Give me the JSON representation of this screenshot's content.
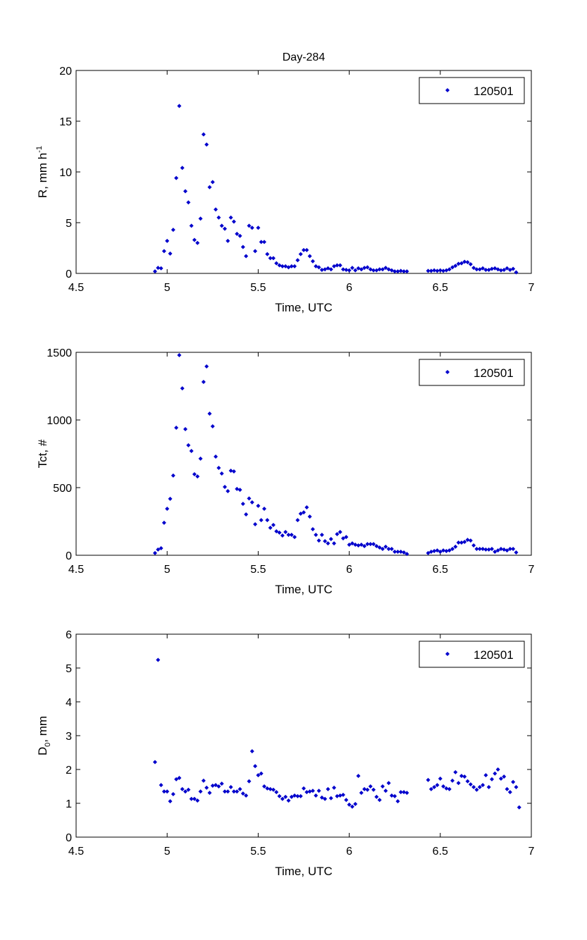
{
  "figure_title": "Day-284",
  "chart_data": [
    {
      "type": "scatter",
      "title": "Day-284",
      "xlabel": "Time, UTC",
      "ylabel": "R, mm h",
      "ylabel_sup": "-1",
      "xlim": [
        4.5,
        7
      ],
      "ylim": [
        0,
        20
      ],
      "xticks": [
        "4.5",
        "5",
        "5.5",
        "6",
        "6.5",
        "7"
      ],
      "yticks": [
        "0",
        "5",
        "10",
        "15",
        "20"
      ],
      "legend": {
        "entries": [
          "120501"
        ],
        "position": "top-right"
      },
      "marker_color": "#0000cc",
      "series": [
        {
          "name": "120501",
          "segments": [
            {
              "t_start": 4.9333,
              "t_step": 0.016667,
              "values": [
                0.2,
                0.55,
                0.5,
                2.2,
                3.2,
                1.95,
                4.3,
                9.4,
                16.5,
                10.4,
                8.1,
                7.0,
                4.7,
                3.3,
                3.0,
                5.4,
                13.7,
                12.7,
                8.5,
                9.0,
                6.3,
                5.5,
                4.7,
                4.4,
                3.2,
                5.5,
                5.1,
                3.9,
                3.7,
                2.6,
                1.7,
                4.7,
                4.5,
                2.2,
                4.5,
                3.1,
                3.1,
                1.9,
                1.5,
                1.5,
                1.0,
                0.8,
                0.7,
                0.7,
                0.6,
                0.7,
                0.7,
                1.3,
                1.9,
                2.3,
                2.3,
                1.7,
                1.2,
                0.7,
                0.6,
                0.35,
                0.4,
                0.5,
                0.4,
                0.7,
                0.8,
                0.8,
                0.4,
                0.35,
                0.3,
                0.55,
                0.3,
                0.5,
                0.4,
                0.55,
                0.6,
                0.4,
                0.3,
                0.3,
                0.4,
                0.4,
                0.55,
                0.4,
                0.3,
                0.2,
                0.2,
                0.25,
                0.2,
                0.2
              ]
            },
            {
              "t_start": 6.4333,
              "t_step": 0.016667,
              "values": [
                0.25,
                0.25,
                0.3,
                0.25,
                0.3,
                0.25,
                0.3,
                0.4,
                0.6,
                0.75,
                0.95,
                1.0,
                1.15,
                1.1,
                0.9,
                0.55,
                0.4,
                0.4,
                0.5,
                0.35,
                0.35,
                0.45,
                0.5,
                0.4,
                0.3,
                0.35,
                0.5,
                0.35,
                0.45,
                0.1
              ]
            }
          ]
        }
      ]
    },
    {
      "type": "scatter",
      "title": "",
      "xlabel": "Time, UTC",
      "ylabel": "Tct, #",
      "xlim": [
        4.5,
        7
      ],
      "ylim": [
        0,
        1500
      ],
      "xticks": [
        "4.5",
        "5",
        "5.5",
        "6",
        "6.5",
        "7"
      ],
      "yticks": [
        "0",
        "500",
        "1000",
        "1500"
      ],
      "legend": {
        "entries": [
          "120501"
        ],
        "position": "top-right"
      },
      "marker_color": "#0000cc",
      "series": [
        {
          "name": "120501",
          "segments": [
            {
              "t_start": 4.9333,
              "t_step": 0.016667,
              "values": [
                16,
                42,
                52,
                240,
                344,
                417,
                589,
                943,
                1479,
                1234,
                932,
                813,
                771,
                599,
                583,
                714,
                1281,
                1396,
                1047,
                953,
                729,
                646,
                604,
                505,
                474,
                625,
                620,
                490,
                484,
                380,
                302,
                420,
                391,
                229,
                365,
                260,
                344,
                260,
                203,
                224,
                177,
                167,
                146,
                172,
                151,
                151,
                135,
                260,
                307,
                317,
                354,
                286,
                193,
                151,
                109,
                151,
                104,
                88,
                120,
                88,
                156,
                172,
                125,
                135,
                78,
                88,
                78,
                73,
                78,
                68,
                83,
                83,
                83,
                68,
                57,
                47,
                63,
                47,
                47,
                26,
                26,
                26,
                21,
                10
              ]
            },
            {
              "t_start": 6.4333,
              "t_step": 0.016667,
              "values": [
                16,
                26,
                31,
                36,
                26,
                36,
                31,
                36,
                47,
                63,
                94,
                94,
                99,
                114,
                109,
                73,
                47,
                47,
                47,
                42,
                42,
                47,
                26,
                36,
                47,
                42,
                36,
                47,
                47,
                21
              ]
            }
          ]
        }
      ]
    },
    {
      "type": "scatter",
      "title": "",
      "xlabel": "Time, UTC",
      "ylabel": "D",
      "ylabel_sub": "0",
      "ylabel_suffix": ", mm",
      "xlim": [
        4.5,
        7
      ],
      "ylim": [
        0,
        6
      ],
      "xticks": [
        "4.5",
        "5",
        "5.5",
        "6",
        "6.5",
        "7"
      ],
      "yticks": [
        "0",
        "1",
        "2",
        "3",
        "4",
        "5",
        "6"
      ],
      "legend": {
        "entries": [
          "120501"
        ],
        "position": "top-right"
      },
      "marker_color": "#0000cc",
      "series": [
        {
          "name": "120501",
          "segments": [
            {
              "t_start": 4.9333,
              "t_step": 0.016667,
              "values": [
                2.22,
                5.24,
                1.54,
                1.35,
                1.35,
                1.06,
                1.27,
                1.71,
                1.75,
                1.42,
                1.35,
                1.4,
                1.13,
                1.13,
                1.08,
                1.35,
                1.67,
                1.46,
                1.31,
                1.52,
                1.54,
                1.5,
                1.58,
                1.35,
                1.35,
                1.48,
                1.35,
                1.35,
                1.42,
                1.29,
                1.23,
                1.65,
                2.54,
                2.1,
                1.83,
                1.88,
                1.5,
                1.44,
                1.42,
                1.4,
                1.33,
                1.21,
                1.13,
                1.19,
                1.08,
                1.19,
                1.23,
                1.21,
                1.21,
                1.44,
                1.33,
                1.35,
                1.37,
                1.23,
                1.37,
                1.17,
                1.13,
                1.42,
                1.15,
                1.46,
                1.21,
                1.23,
                1.25,
                1.1,
                0.96,
                0.9,
                0.98,
                1.81,
                1.31,
                1.42,
                1.4,
                1.5,
                1.4,
                1.19,
                1.1,
                1.5,
                1.37,
                1.6,
                1.23,
                1.21,
                1.06,
                1.33,
                1.33,
                1.31
              ]
            },
            {
              "t_start": 6.4333,
              "t_step": 0.016667,
              "values": [
                1.69,
                1.42,
                1.48,
                1.54,
                1.73,
                1.5,
                1.44,
                1.42,
                1.67,
                1.92,
                1.6,
                1.81,
                1.79,
                1.65,
                1.56,
                1.48,
                1.4,
                1.48,
                1.54,
                1.83,
                1.48,
                1.71,
                1.88,
                2.0,
                1.73,
                1.79,
                1.42,
                1.33,
                1.63,
                1.48,
                0.88
              ]
            }
          ]
        }
      ]
    }
  ]
}
